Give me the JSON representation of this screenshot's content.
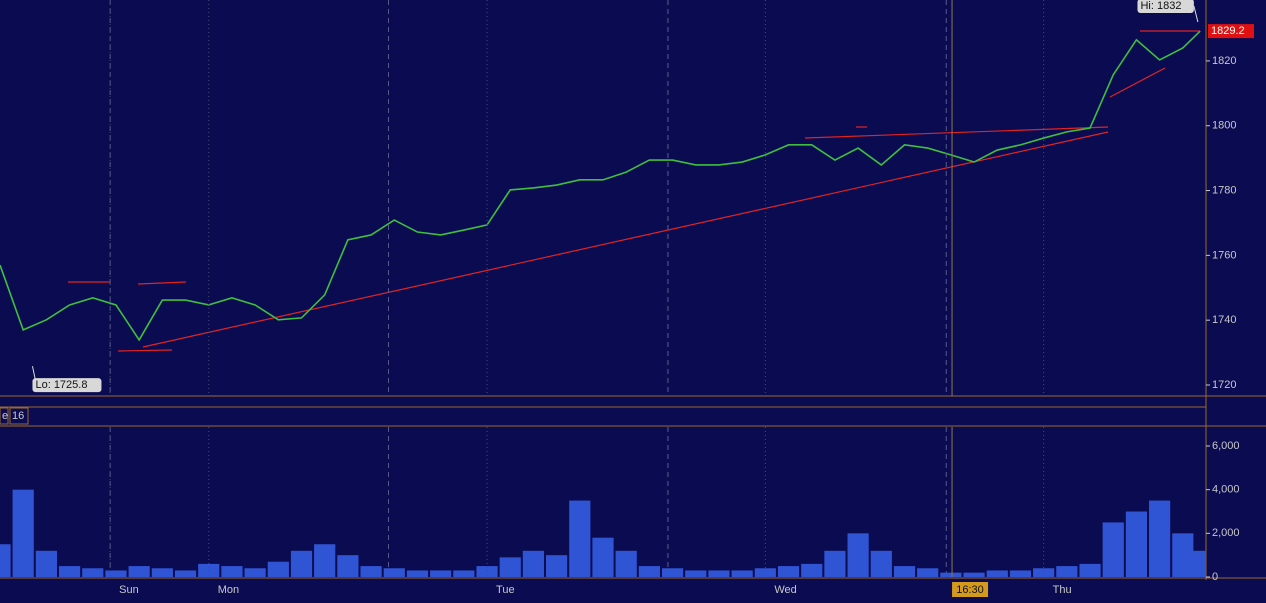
{
  "chart_data": [
    {
      "type": "line",
      "color": "#3fbf3f",
      "xlim": [
        -18,
        86
      ],
      "ylim": [
        1716.6,
        1838.8
      ],
      "yticks": [
        1720,
        1740,
        1760,
        1780,
        1800,
        1820
      ],
      "x": [
        -18,
        -16,
        -14,
        -12,
        -10,
        -8,
        -6,
        -4,
        -2,
        0,
        2,
        4,
        6,
        8,
        10,
        12,
        14,
        16,
        18,
        20,
        22,
        24,
        26,
        28,
        30,
        32,
        34,
        36,
        38,
        40,
        42,
        44,
        46,
        48,
        50,
        52,
        54,
        56,
        58,
        60,
        62,
        64,
        66,
        68,
        70,
        72,
        74,
        76,
        78,
        80,
        82,
        84,
        85.5
      ],
      "values": [
        1757,
        1737.0,
        1740.1,
        1744.7,
        1746.9,
        1744.7,
        1733.9,
        1746.2,
        1746.2,
        1744.7,
        1746.9,
        1744.7,
        1740.1,
        1740.7,
        1747.8,
        1764.8,
        1766.3,
        1770.9,
        1767.2,
        1766.3,
        1767.8,
        1769.4,
        1780.2,
        1780.8,
        1781.7,
        1783.3,
        1783.3,
        1785.7,
        1789.4,
        1789.4,
        1787.9,
        1787.9,
        1788.8,
        1791.0,
        1794.1,
        1794.1,
        1789.4,
        1793.1,
        1787.9,
        1794.1,
        1793.1,
        1791.0,
        1788.8,
        1792.5,
        1794.1,
        1796.2,
        1798.1,
        1799.3,
        1815.7,
        1826.5,
        1820.3,
        1824.0,
        1829.2
      ],
      "last_price": 1829.2,
      "annotations": [
        {
          "text": "Hi: 1832",
          "x": 85.3,
          "y": 1832
        },
        {
          "text": "Lo: 1725.8",
          "x": -15.2,
          "y": 1725.8
        }
      ],
      "session_breaks": [
        -8.5,
        15.5,
        39.6,
        63.6
      ]
    },
    {
      "type": "bar",
      "color": "#2f55d4",
      "panel_labels": [
        "e",
        "16"
      ],
      "xlim": [
        -18,
        86
      ],
      "ylim": [
        0,
        6870
      ],
      "yticks": [
        {
          "value": 6000,
          "label": "6,000"
        },
        {
          "value": 4000,
          "label": "4,000"
        },
        {
          "value": 2000,
          "label": "2,000"
        },
        0
      ],
      "xticks": [
        {
          "value": -8.5,
          "label": "Sun"
        },
        {
          "value": 0,
          "label": "Mon"
        },
        {
          "value": 24,
          "label": "Tue"
        },
        {
          "value": 48,
          "label": "Wed"
        },
        {
          "value": 72,
          "label": "Thu"
        }
      ],
      "cursor": {
        "label": "16:30",
        "x": 64.1
      },
      "x": [
        -18,
        -16,
        -14,
        -12,
        -10,
        -8,
        -6,
        -4,
        -2,
        0,
        2,
        4,
        6,
        8,
        10,
        12,
        14,
        16,
        18,
        20,
        22,
        24,
        26,
        28,
        30,
        32,
        34,
        36,
        38,
        40,
        42,
        44,
        46,
        48,
        50,
        52,
        54,
        56,
        58,
        60,
        62,
        64,
        66,
        68,
        70,
        72,
        74,
        76,
        78,
        80,
        82,
        84,
        85.5
      ],
      "values": [
        1500,
        4000,
        1200,
        500,
        400,
        300,
        500,
        400,
        300,
        600,
        500,
        400,
        700,
        1200,
        1500,
        1000,
        500,
        400,
        300,
        300,
        300,
        500,
        900,
        1200,
        1000,
        3500,
        1800,
        1200,
        500,
        400,
        300,
        300,
        300,
        400,
        500,
        600,
        1200,
        2000,
        1200,
        500,
        400,
        200,
        200,
        300,
        300,
        400,
        500,
        600,
        2500,
        3000,
        3500,
        2000,
        1200
      ]
    }
  ]
}
